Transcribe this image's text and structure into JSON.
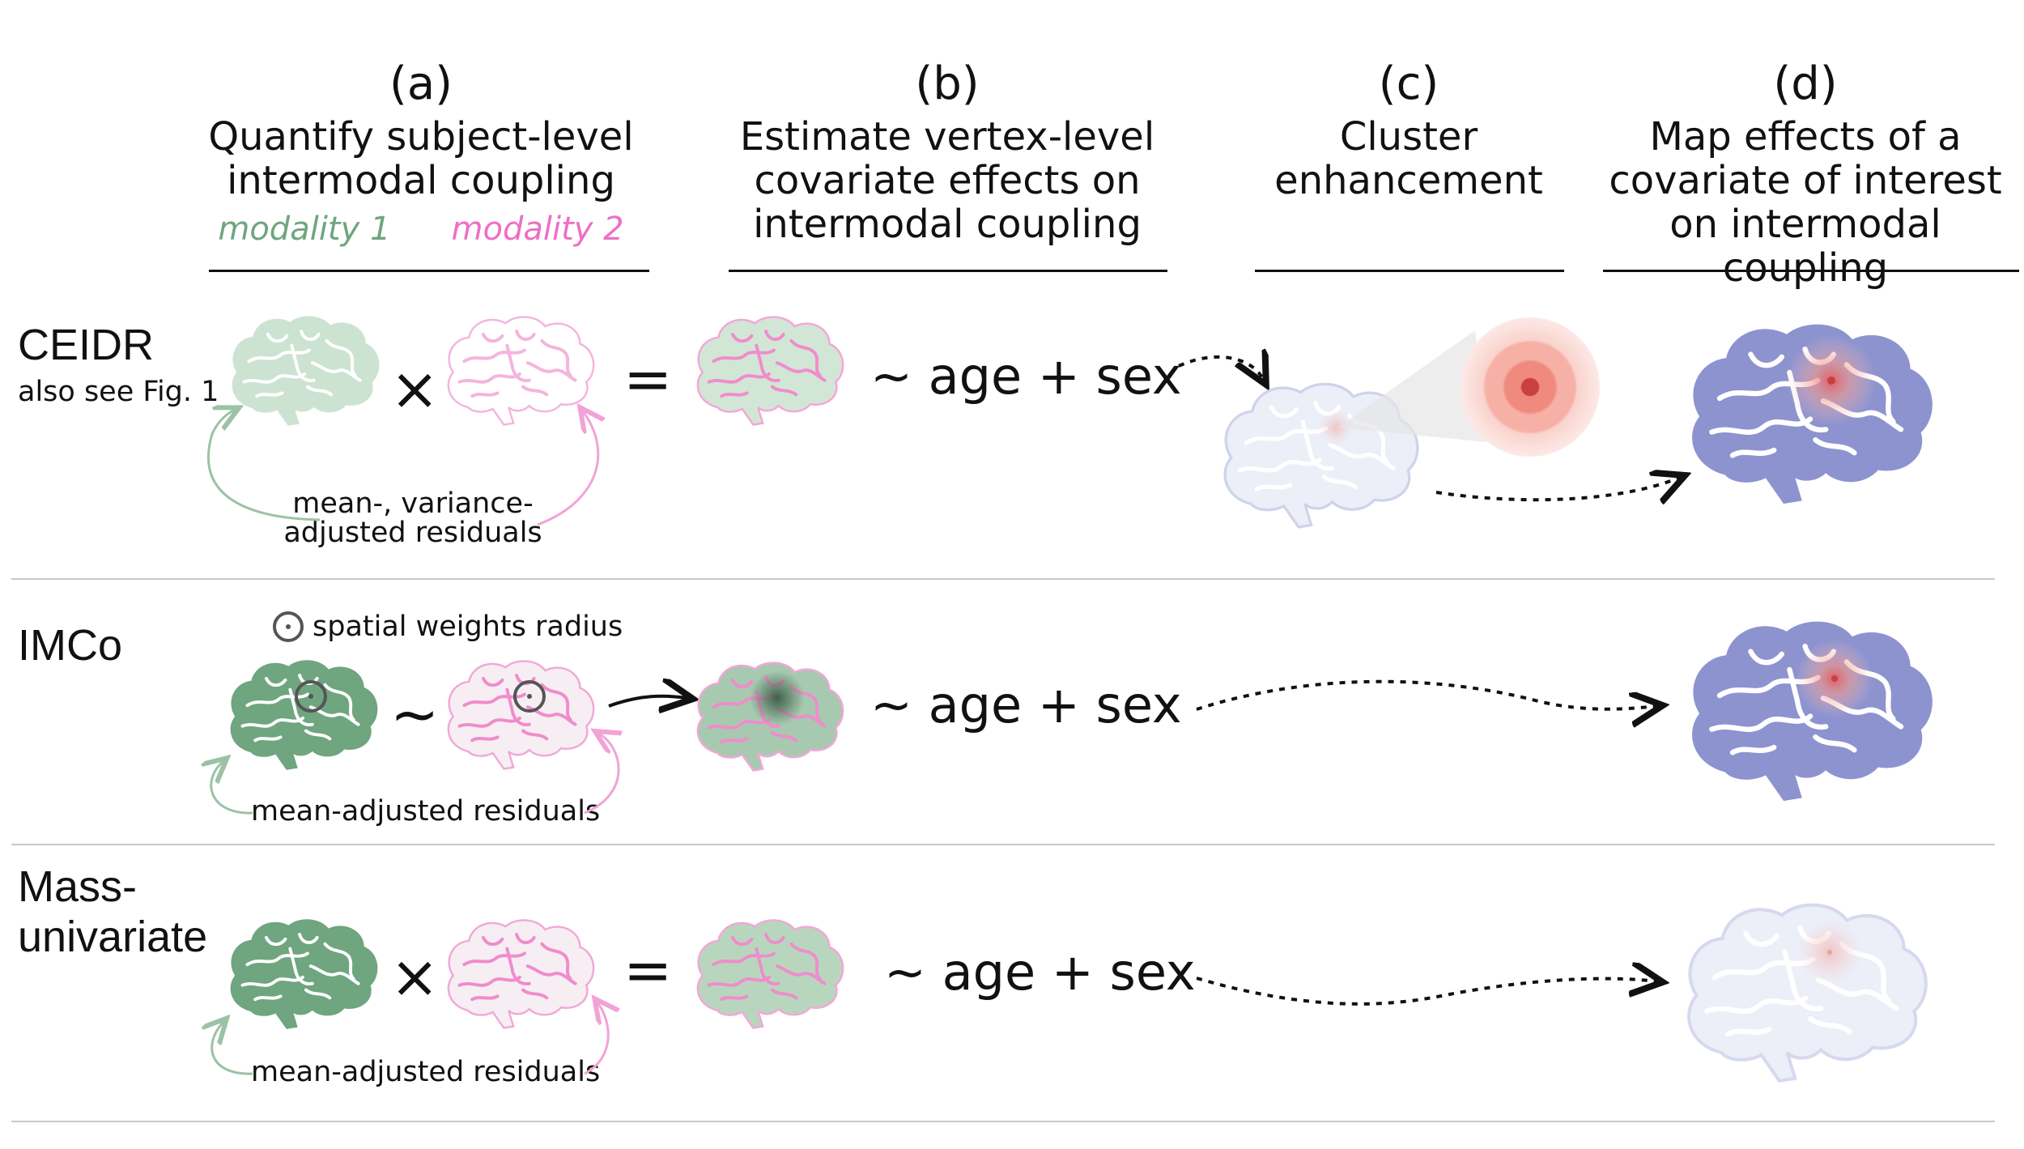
{
  "columns": [
    {
      "letter": "(a)",
      "title_lines": [
        "Quantify subject-level",
        "intermodal coupling"
      ]
    },
    {
      "letter": "(b)",
      "title_lines": [
        "Estimate vertex-level",
        "covariate effects on",
        "intermodal coupling"
      ]
    },
    {
      "letter": "(c)",
      "title_lines": [
        "Cluster",
        "enhancement"
      ]
    },
    {
      "letter": "(d)",
      "title_lines": [
        "Map effects of a",
        "covariate of interest",
        "on intermodal coupling"
      ]
    }
  ],
  "modalities": {
    "m1": "modality 1",
    "m2": "modality 2"
  },
  "colors": {
    "modality1": "#6fa57f",
    "modality2": "#ee6fc3",
    "effect_map": "#8d93cf",
    "hotspot": "#e85a5a",
    "separator": "#c8c8c8"
  },
  "rows": [
    {
      "label_lines": [
        "CEIDR"
      ],
      "sublabel": "also see Fig. 1",
      "operator": "×",
      "equals": "=",
      "formula": "~ age + sex",
      "note_lines": [
        "mean-, variance-",
        "adjusted residuals"
      ]
    },
    {
      "label_lines": [
        "IMCo"
      ],
      "operator": "~",
      "formula": "~ age + sex",
      "note_lines": [
        "mean-adjusted residuals"
      ],
      "radius_label": "spatial weights radius"
    },
    {
      "label_lines": [
        "Mass-",
        "univariate"
      ],
      "operator": "×",
      "equals": "=",
      "formula": "~ age + sex",
      "note_lines": [
        "mean-adjusted residuals"
      ]
    }
  ],
  "icons": [
    "brain-icon",
    "target-icon",
    "radius-icon",
    "arrow-icon"
  ]
}
